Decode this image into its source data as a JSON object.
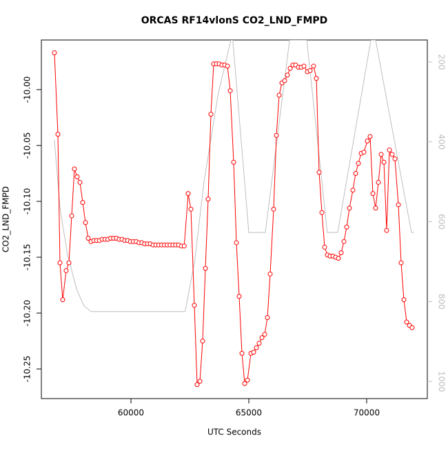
{
  "chart_data": {
    "type": "line",
    "title": "ORCAS RF14vlonS CO2_LND_FMPD",
    "x_label": "UTC Seconds",
    "y_label": "CO2_LND_FMPD",
    "xlim": [
      56199,
      72573
    ],
    "ylim": [
      -10.2765,
      -9.9556
    ],
    "y2lim": [
      1043,
      145
    ],
    "xticks": [
      60000,
      65000,
      70000
    ],
    "yticks": [
      {
        "value": -10.0,
        "label": "-10.00"
      },
      -10.05,
      {
        "value": -10.1,
        "label": "-10.10"
      },
      -10.15,
      {
        "value": -10.2,
        "label": "-10.20"
      },
      -10.25
    ],
    "y2ticks": [
      200,
      400,
      600,
      800,
      1000
    ],
    "series": [
      {
        "color": "#ff0000",
        "marker": "circle",
        "x": [
          56754,
          56901,
          56988,
          57105,
          57251,
          57368,
          57485,
          57602,
          57719,
          57836,
          57954,
          58070,
          58187,
          58304,
          58421,
          58540,
          58660,
          58780,
          58900,
          59020,
          59140,
          59260,
          59380,
          59500,
          59620,
          59740,
          59860,
          59980,
          60100,
          60220,
          60340,
          60460,
          60580,
          60700,
          60820,
          60940,
          61060,
          61180,
          61300,
          61420,
          61540,
          61660,
          61780,
          61900,
          62020,
          62140,
          62260,
          62427,
          62544,
          62690,
          62807,
          62924,
          63041,
          63158,
          63275,
          63392,
          63509,
          63626,
          63743,
          63860,
          63977,
          64094,
          64211,
          64357,
          64474,
          64591,
          64708,
          64825,
          64942,
          65088,
          65205,
          65322,
          65439,
          65556,
          65673,
          65790,
          65906,
          66053,
          66170,
          66287,
          66404,
          66520,
          66637,
          66754,
          66871,
          66988,
          67105,
          67222,
          67339,
          67485,
          67602,
          67749,
          67866,
          67983,
          68100,
          68217,
          68334,
          68451,
          68568,
          68684,
          68801,
          68918,
          69035,
          69152,
          69269,
          69415,
          69532,
          69649,
          69766,
          69883,
          70029,
          70146,
          70263,
          70380,
          70497,
          70614,
          70731,
          70848,
          70965,
          71082,
          71199,
          71345,
          71462,
          71579,
          71696,
          71813,
          71930
        ],
        "values": [
          -9.967,
          -10.04,
          -10.155,
          -10.188,
          -10.162,
          -10.155,
          -10.113,
          -10.071,
          -10.078,
          -10.083,
          -10.101,
          -10.119,
          -10.133,
          -10.136,
          -10.135,
          -10.135,
          -10.135,
          -10.134,
          -10.134,
          -10.134,
          -10.133,
          -10.133,
          -10.133,
          -10.134,
          -10.134,
          -10.135,
          -10.135,
          -10.136,
          -10.136,
          -10.136,
          -10.137,
          -10.137,
          -10.138,
          -10.138,
          -10.138,
          -10.139,
          -10.139,
          -10.139,
          -10.139,
          -10.139,
          -10.139,
          -10.139,
          -10.139,
          -10.139,
          -10.139,
          -10.14,
          -10.14,
          -10.093,
          -10.107,
          -10.193,
          -10.264,
          -10.261,
          -10.225,
          -10.16,
          -10.098,
          -10.022,
          -9.977,
          -9.977,
          -9.977,
          -9.978,
          -9.978,
          -9.979,
          -10.001,
          -10.065,
          -10.137,
          -10.185,
          -10.236,
          -10.263,
          -10.26,
          -10.236,
          -10.235,
          -10.231,
          -10.227,
          -10.222,
          -10.219,
          -10.204,
          -10.165,
          -10.107,
          -10.041,
          -10.005,
          -9.994,
          -9.992,
          -9.987,
          -9.981,
          -9.978,
          -9.978,
          -9.98,
          -9.98,
          -9.979,
          -9.984,
          -9.983,
          -9.979,
          -9.99,
          -10.074,
          -10.11,
          -10.141,
          -10.148,
          -10.149,
          -10.149,
          -10.15,
          -10.151,
          -10.146,
          -10.136,
          -10.123,
          -10.106,
          -10.09,
          -10.075,
          -10.066,
          -10.057,
          -10.056,
          -10.046,
          -10.042,
          -10.093,
          -10.106,
          -10.083,
          -10.058,
          -10.065,
          -10.126,
          -10.054,
          -10.058,
          -10.062,
          -10.103,
          -10.155,
          -10.188,
          -10.208,
          -10.211,
          -10.213
        ]
      },
      {
        "color": "#bebebe",
        "axis": "y2",
        "x": [
          56750,
          57000,
          57300,
          57700,
          58000,
          58300,
          62300,
          62700,
          63100,
          63700,
          64240,
          64320,
          65000,
          65700,
          66730,
          67460,
          68330,
          68770,
          70180,
          70380,
          71900,
          72000
        ],
        "values": [
          395,
          570,
          680,
          770,
          810,
          825,
          825,
          700,
          500,
          280,
          145,
          145,
          627,
          627,
          145,
          145,
          627,
          627,
          145,
          145,
          627,
          627
        ]
      }
    ]
  }
}
